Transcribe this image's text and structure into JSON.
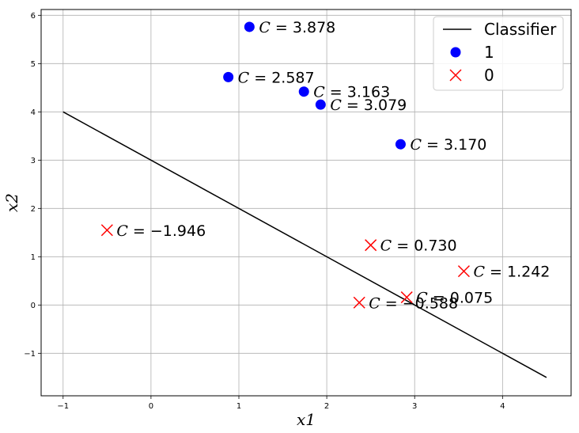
{
  "chart_data": {
    "type": "scatter",
    "xlabel": "x1",
    "ylabel": "x2",
    "xlim": [
      -1.25,
      4.78
    ],
    "ylim": [
      -1.88,
      6.12
    ],
    "xticks": [
      -1,
      0,
      1,
      2,
      3,
      4
    ],
    "yticks": [
      -1,
      0,
      1,
      2,
      3,
      4,
      5,
      6
    ],
    "grid": true,
    "legend": {
      "placement": "top-right",
      "entries": [
        "Classifier",
        "1",
        "0"
      ]
    },
    "classifier_line": {
      "name": "Classifier",
      "color": "#000000",
      "x": [
        -1,
        4.5
      ],
      "y": [
        4,
        -1.5
      ]
    },
    "series": [
      {
        "name": "1",
        "marker": "circle",
        "color": "#0000ff",
        "points": [
          {
            "x": 1.12,
            "y": 5.76,
            "label": "C = 3.878"
          },
          {
            "x": 0.88,
            "y": 4.72,
            "label": "C = 2.587"
          },
          {
            "x": 1.74,
            "y": 4.42,
            "label": "C = 3.163"
          },
          {
            "x": 1.93,
            "y": 4.15,
            "label": "C = 3.079"
          },
          {
            "x": 2.84,
            "y": 3.33,
            "label": "C = 3.170"
          }
        ]
      },
      {
        "name": "0",
        "marker": "x",
        "color": "#ff0000",
        "points": [
          {
            "x": -0.5,
            "y": 1.55,
            "label": "C = −1.946"
          },
          {
            "x": 2.5,
            "y": 1.24,
            "label": "C = 0.730"
          },
          {
            "x": 3.56,
            "y": 0.7,
            "label": "C = 1.242"
          },
          {
            "x": 2.91,
            "y": 0.16,
            "label": "C = 0.075"
          },
          {
            "x": 2.37,
            "y": 0.05,
            "label": "C = −0.588"
          }
        ]
      }
    ]
  }
}
